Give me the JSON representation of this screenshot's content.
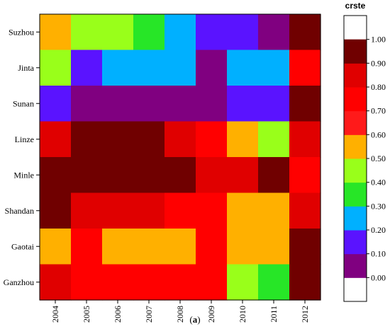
{
  "caption": {
    "open": "(",
    "letter": "a",
    "close": ")"
  },
  "chart_data": {
    "type": "heatmap",
    "x_categories": [
      "2004",
      "2005",
      "2006",
      "2007",
      "2008",
      "2009",
      "2010",
      "2011",
      "2012"
    ],
    "y_categories": [
      "Suzhou",
      "Jinta",
      "Sunan",
      "Linze",
      "Minle",
      "Shandan",
      "Gaotai",
      "Ganzhou"
    ],
    "values": [
      [
        0.55,
        0.45,
        0.45,
        0.35,
        0.25,
        0.15,
        0.15,
        0.05,
        0.95
      ],
      [
        0.45,
        0.15,
        0.25,
        0.25,
        0.25,
        0.05,
        0.25,
        0.25,
        0.75
      ],
      [
        0.15,
        0.05,
        0.05,
        0.05,
        0.05,
        0.05,
        0.15,
        0.15,
        0.95
      ],
      [
        0.85,
        0.95,
        0.95,
        0.95,
        0.85,
        0.75,
        0.55,
        0.45,
        0.85
      ],
      [
        0.95,
        0.95,
        0.95,
        0.95,
        0.95,
        0.85,
        0.85,
        0.95,
        0.75
      ],
      [
        0.95,
        0.85,
        0.85,
        0.85,
        0.75,
        0.75,
        0.55,
        0.55,
        0.85
      ],
      [
        0.55,
        0.75,
        0.55,
        0.55,
        0.55,
        0.75,
        0.55,
        0.55,
        0.95
      ],
      [
        0.85,
        0.75,
        0.75,
        0.75,
        0.75,
        0.75,
        0.45,
        0.35,
        0.95
      ]
    ],
    "legend": {
      "title": "crste",
      "ticks": [
        "0.00",
        "0.10",
        "0.20",
        "0.30",
        "0.40",
        "0.50",
        "0.60",
        "0.70",
        "0.80",
        "0.90",
        "1.00"
      ],
      "range": [
        0,
        1
      ],
      "colors": [
        "#800080",
        "#5a13ff",
        "#00b0ff",
        "#27e627",
        "#99ff1a",
        "#ffb000",
        "#ff1a1a",
        "#ff0000",
        "#e00000",
        "#700000"
      ],
      "outside_color": "#ffffff"
    },
    "grid": false
  }
}
